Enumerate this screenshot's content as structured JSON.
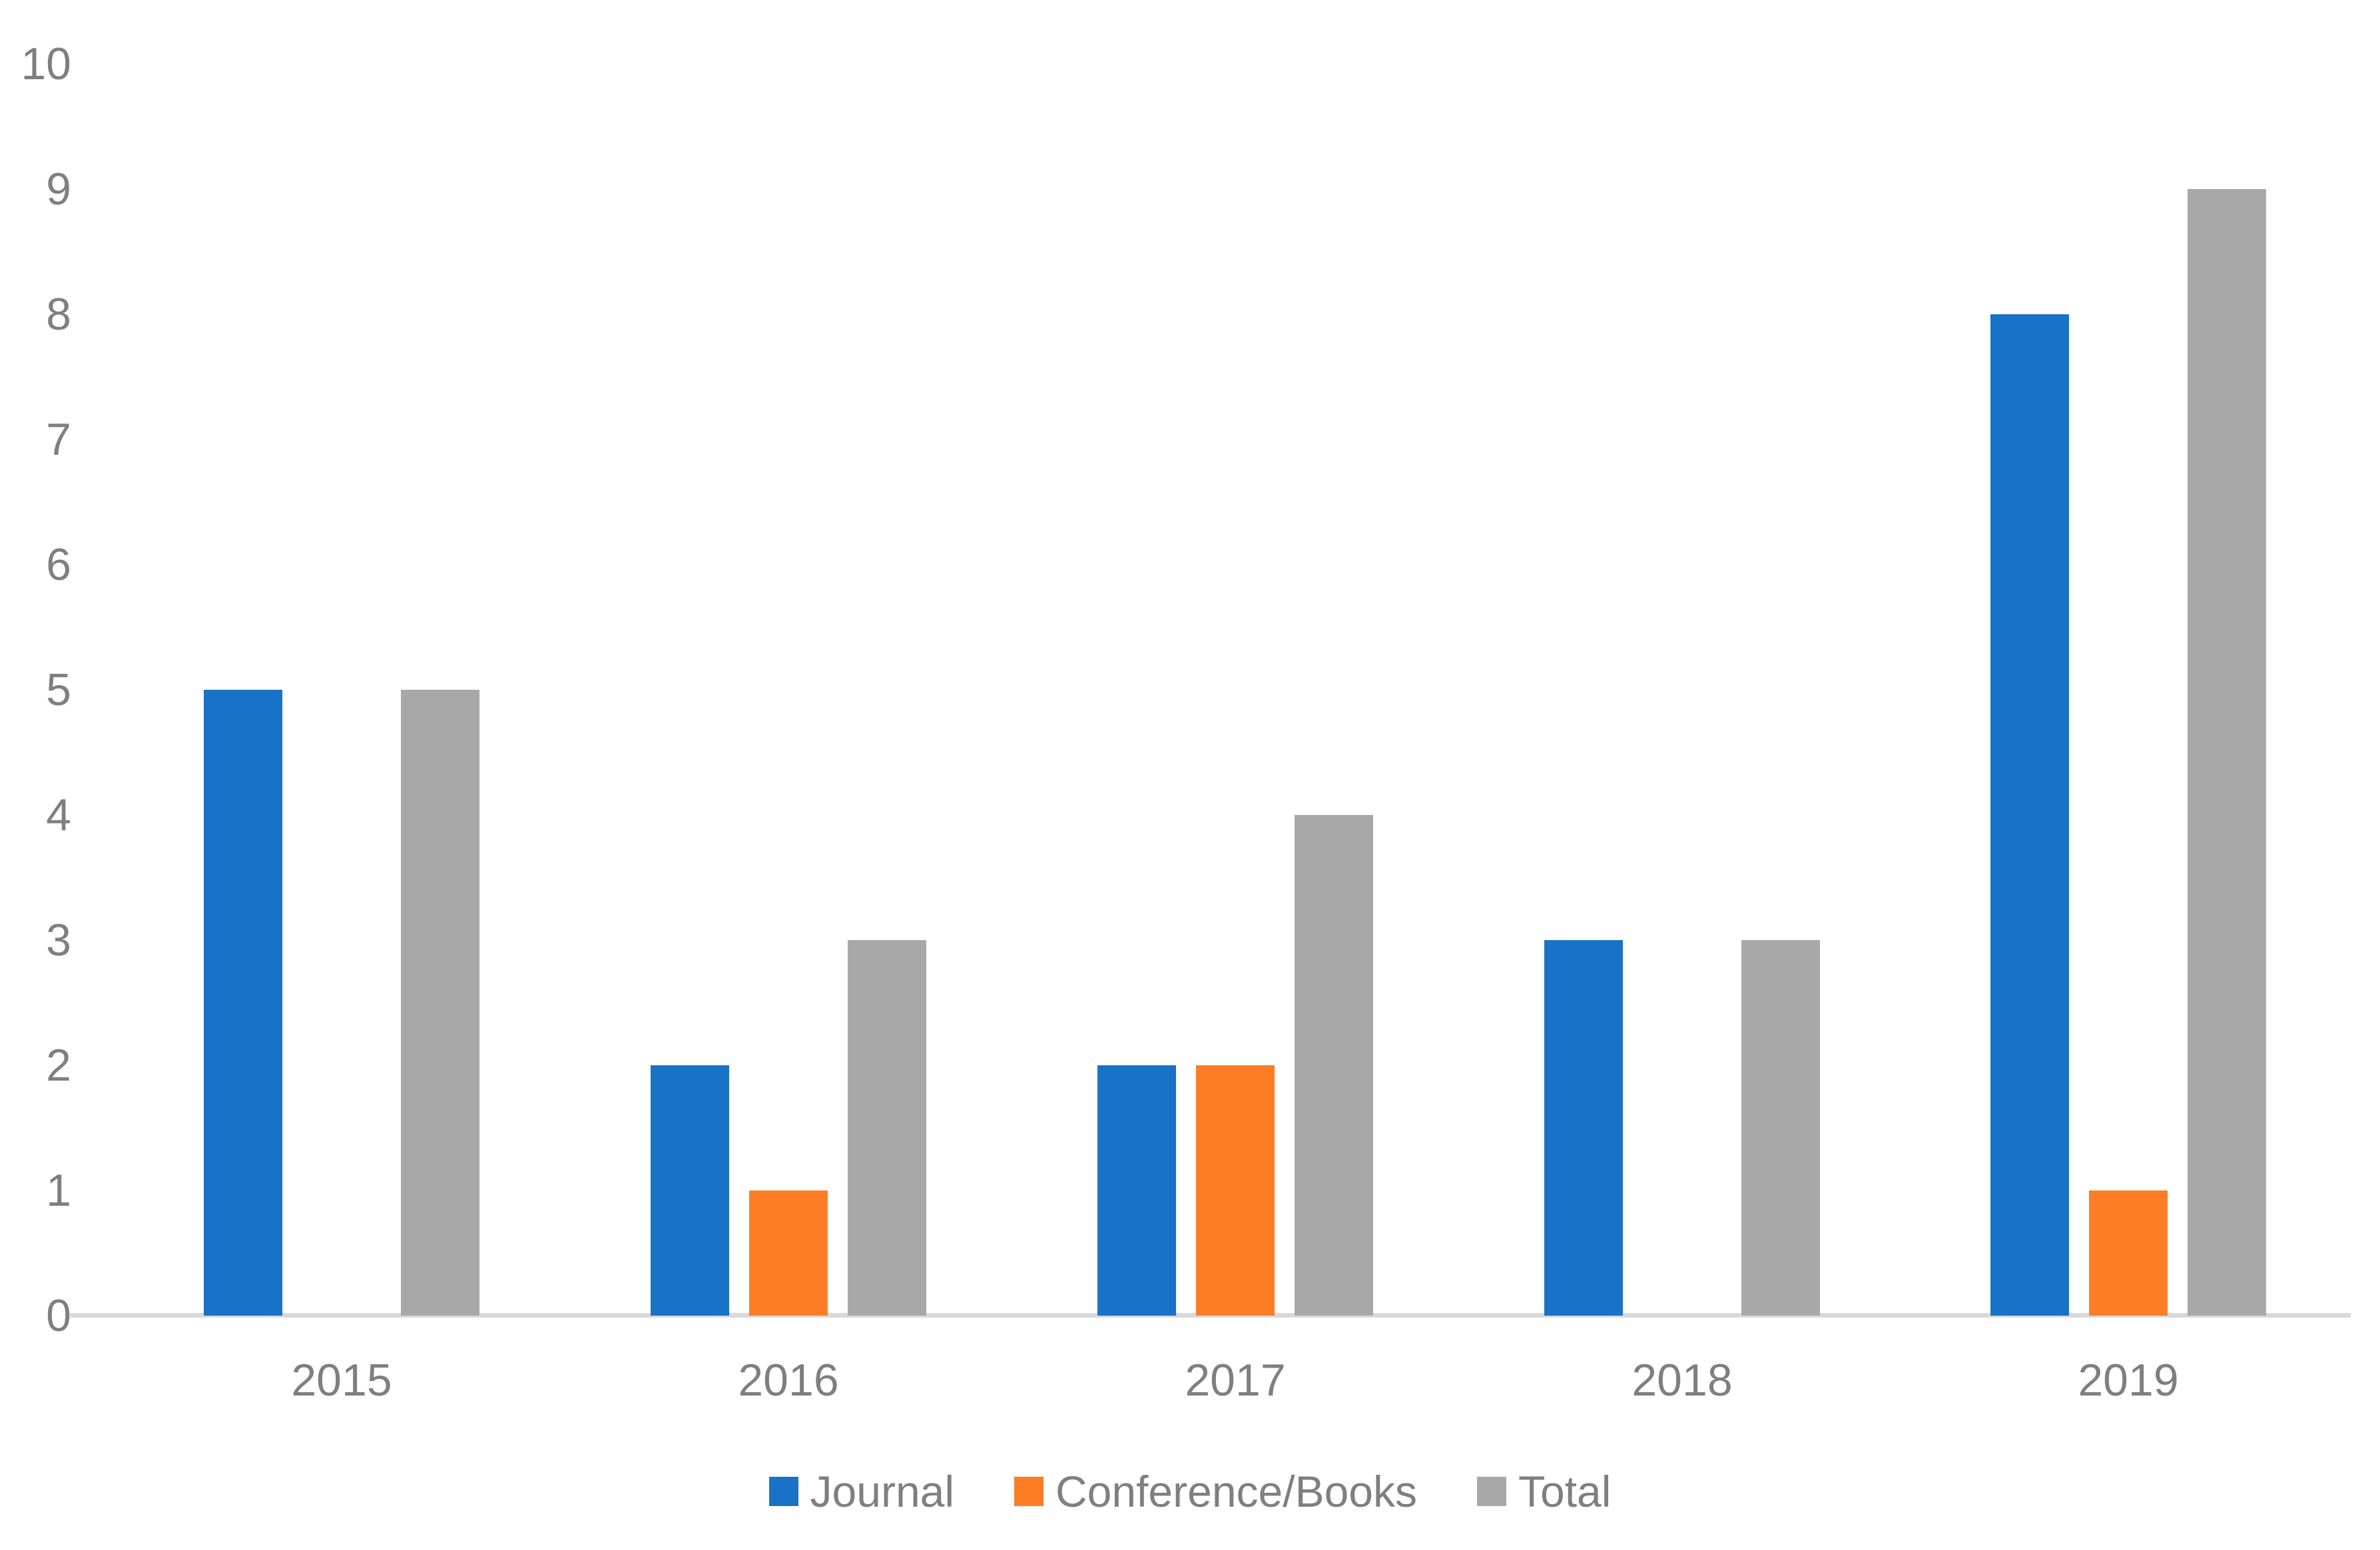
{
  "chart_data": {
    "type": "bar",
    "title": "",
    "xlabel": "",
    "ylabel": "",
    "categories": [
      "2015",
      "2016",
      "2017",
      "2018",
      "2019"
    ],
    "series": [
      {
        "name": "Journal",
        "color": "#1872C8",
        "values": [
          5,
          2,
          2,
          3,
          8
        ]
      },
      {
        "name": "Conference/Books",
        "color": "#FC7D26",
        "values": [
          0,
          1,
          2,
          0,
          1
        ]
      },
      {
        "name": "Total",
        "color": "#A8A8A8",
        "values": [
          5,
          3,
          4,
          3,
          9
        ]
      }
    ],
    "ylim": [
      0,
      10
    ],
    "yticks": [
      0,
      1,
      2,
      3,
      4,
      5,
      6,
      7,
      8,
      9,
      10
    ],
    "grid": false,
    "legend_position": "bottom",
    "axis_color": "#D9D9D9",
    "tick_text_color": "#7F7F7F",
    "background_color": "#FFFFFF"
  }
}
